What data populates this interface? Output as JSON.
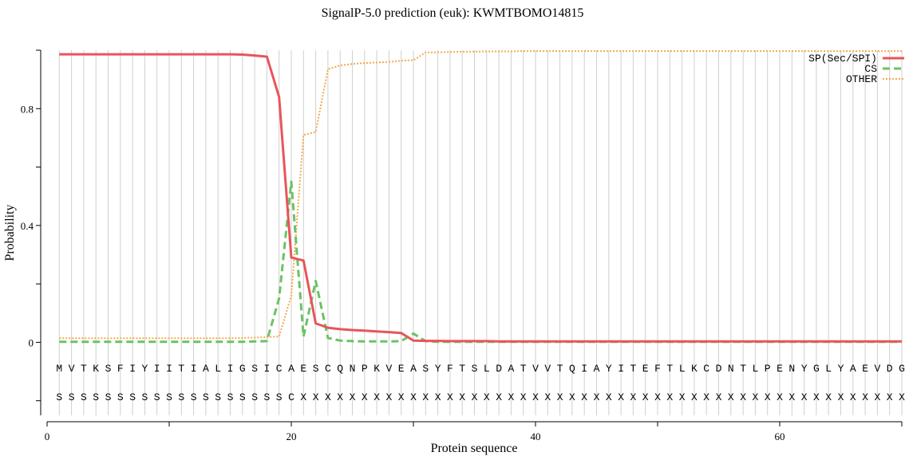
{
  "chart_data": {
    "type": "line",
    "title": "SignalP-5.0 prediction (euk):  KWMTBOMO14815",
    "xlabel": "Protein sequence",
    "ylabel": "Probability",
    "xlim": [
      0,
      70
    ],
    "ylim": [
      -0.25,
      1.0
    ],
    "x_ticks": [
      0,
      20,
      40,
      60
    ],
    "x_tick_labels": [
      "0",
      "20",
      "40",
      "60"
    ],
    "y_ticks": [
      0,
      0.4,
      0.8
    ],
    "y_tick_labels": [
      "0",
      "0.4",
      "0.8"
    ],
    "grid": "vertical lines at each residue position",
    "legend_position": "top-right",
    "sequence": [
      "M",
      "V",
      "T",
      "K",
      "S",
      "F",
      "I",
      "Y",
      "I",
      "I",
      "T",
      "I",
      "A",
      "L",
      "I",
      "G",
      "S",
      "I",
      "C",
      "A",
      "E",
      "S",
      "C",
      "Q",
      "N",
      "P",
      "K",
      "V",
      "E",
      "A",
      "S",
      "Y",
      "F",
      "T",
      "S",
      "L",
      "D",
      "A",
      "T",
      "V",
      "V",
      "T",
      "Q",
      "I",
      "A",
      "Y",
      "I",
      "T",
      "E",
      "F",
      "T",
      "L",
      "K",
      "C",
      "D",
      "N",
      "T",
      "L",
      "P",
      "E",
      "N",
      "Y",
      "G",
      "L",
      "Y",
      "A",
      "E",
      "V",
      "D",
      "G"
    ],
    "labels": [
      "S",
      "S",
      "S",
      "S",
      "S",
      "S",
      "S",
      "S",
      "S",
      "S",
      "S",
      "S",
      "S",
      "S",
      "S",
      "S",
      "S",
      "S",
      "S",
      "C",
      "X",
      "X",
      "X",
      "X",
      "X",
      "X",
      "X",
      "X",
      "X",
      "X",
      "X",
      "X",
      "X",
      "X",
      "X",
      "X",
      "X",
      "X",
      "X",
      "X",
      "X",
      "X",
      "X",
      "X",
      "X",
      "X",
      "X",
      "X",
      "X",
      "X",
      "X",
      "X",
      "X",
      "X",
      "X",
      "X",
      "X",
      "X",
      "X",
      "X",
      "X",
      "X",
      "X",
      "X",
      "X",
      "X",
      "X",
      "X",
      "X",
      "X"
    ],
    "series": [
      {
        "name": "SP(Sec/SPI)",
        "color": "#e8555a",
        "style": "solid",
        "x": [
          1,
          2,
          3,
          4,
          5,
          6,
          7,
          8,
          9,
          10,
          11,
          12,
          13,
          14,
          15,
          16,
          17,
          18,
          19,
          20,
          21,
          22,
          23,
          24,
          25,
          26,
          27,
          28,
          29,
          30,
          31,
          32,
          33,
          34,
          35,
          36,
          37,
          38,
          39,
          40,
          41,
          42,
          43,
          44,
          45,
          46,
          47,
          48,
          49,
          50,
          51,
          52,
          53,
          54,
          55,
          56,
          57,
          58,
          59,
          60,
          61,
          62,
          63,
          64,
          65,
          66,
          67,
          68,
          69,
          70
        ],
        "values": [
          0.986,
          0.986,
          0.986,
          0.986,
          0.986,
          0.986,
          0.986,
          0.986,
          0.986,
          0.986,
          0.986,
          0.986,
          0.986,
          0.986,
          0.986,
          0.985,
          0.982,
          0.978,
          0.84,
          0.29,
          0.28,
          0.065,
          0.05,
          0.045,
          0.042,
          0.04,
          0.037,
          0.035,
          0.032,
          0.006,
          0.005,
          0.005,
          0.004,
          0.004,
          0.004,
          0.004,
          0.003,
          0.003,
          0.003,
          0.003,
          0.003,
          0.003,
          0.003,
          0.003,
          0.003,
          0.003,
          0.003,
          0.003,
          0.003,
          0.003,
          0.003,
          0.003,
          0.003,
          0.003,
          0.003,
          0.003,
          0.003,
          0.003,
          0.003,
          0.003,
          0.003,
          0.003,
          0.003,
          0.003,
          0.003,
          0.003,
          0.003,
          0.003,
          0.003,
          0.003
        ]
      },
      {
        "name": "CS",
        "color": "#6cc264",
        "style": "dashed",
        "x": [
          1,
          2,
          3,
          4,
          5,
          6,
          7,
          8,
          9,
          10,
          11,
          12,
          13,
          14,
          15,
          16,
          17,
          18,
          19,
          20,
          21,
          22,
          23,
          24,
          25,
          26,
          27,
          28,
          29,
          30,
          31,
          32,
          33,
          34,
          35,
          36,
          37,
          38,
          39,
          40,
          41,
          42,
          43,
          44,
          45,
          46,
          47,
          48,
          49,
          50,
          51,
          52,
          53,
          54,
          55,
          56,
          57,
          58,
          59,
          60,
          61,
          62,
          63,
          64,
          65,
          66,
          67,
          68,
          69,
          70
        ],
        "values": [
          0.002,
          0.002,
          0.002,
          0.002,
          0.002,
          0.002,
          0.002,
          0.002,
          0.002,
          0.002,
          0.002,
          0.002,
          0.002,
          0.002,
          0.002,
          0.002,
          0.003,
          0.004,
          0.15,
          0.55,
          0.02,
          0.21,
          0.015,
          0.006,
          0.004,
          0.003,
          0.003,
          0.003,
          0.004,
          0.03,
          0.004,
          0.002,
          0.002,
          0.002,
          0.002,
          0.002,
          0.002,
          0.002,
          0.002,
          0.002,
          0.002,
          0.002,
          0.002,
          0.002,
          0.002,
          0.002,
          0.002,
          0.002,
          0.002,
          0.002,
          0.002,
          0.002,
          0.002,
          0.002,
          0.002,
          0.002,
          0.002,
          0.002,
          0.002,
          0.002,
          0.002,
          0.002,
          0.002,
          0.002,
          0.002,
          0.002,
          0.002,
          0.002,
          0.002,
          0.002
        ]
      },
      {
        "name": "OTHER",
        "color": "#f5a94e",
        "style": "dotted",
        "x": [
          1,
          2,
          3,
          4,
          5,
          6,
          7,
          8,
          9,
          10,
          11,
          12,
          13,
          14,
          15,
          16,
          17,
          18,
          19,
          20,
          21,
          22,
          23,
          24,
          25,
          26,
          27,
          28,
          29,
          30,
          31,
          32,
          33,
          34,
          35,
          36,
          37,
          38,
          39,
          40,
          41,
          42,
          43,
          44,
          45,
          46,
          47,
          48,
          49,
          50,
          51,
          52,
          53,
          54,
          55,
          56,
          57,
          58,
          59,
          60,
          61,
          62,
          63,
          64,
          65,
          66,
          67,
          68,
          69,
          70
        ],
        "values": [
          0.014,
          0.014,
          0.014,
          0.014,
          0.014,
          0.014,
          0.014,
          0.014,
          0.014,
          0.014,
          0.014,
          0.014,
          0.014,
          0.014,
          0.014,
          0.015,
          0.016,
          0.018,
          0.02,
          0.16,
          0.71,
          0.72,
          0.935,
          0.948,
          0.953,
          0.956,
          0.958,
          0.96,
          0.964,
          0.966,
          0.992,
          0.993,
          0.994,
          0.995,
          0.995,
          0.996,
          0.996,
          0.996,
          0.997,
          0.997,
          0.997,
          0.997,
          0.997,
          0.997,
          0.997,
          0.997,
          0.997,
          0.997,
          0.997,
          0.997,
          0.997,
          0.997,
          0.997,
          0.997,
          0.997,
          0.997,
          0.997,
          0.997,
          0.997,
          0.997,
          0.997,
          0.997,
          0.997,
          0.997,
          0.997,
          0.997,
          0.997,
          0.997,
          0.997,
          0.997
        ]
      }
    ]
  }
}
